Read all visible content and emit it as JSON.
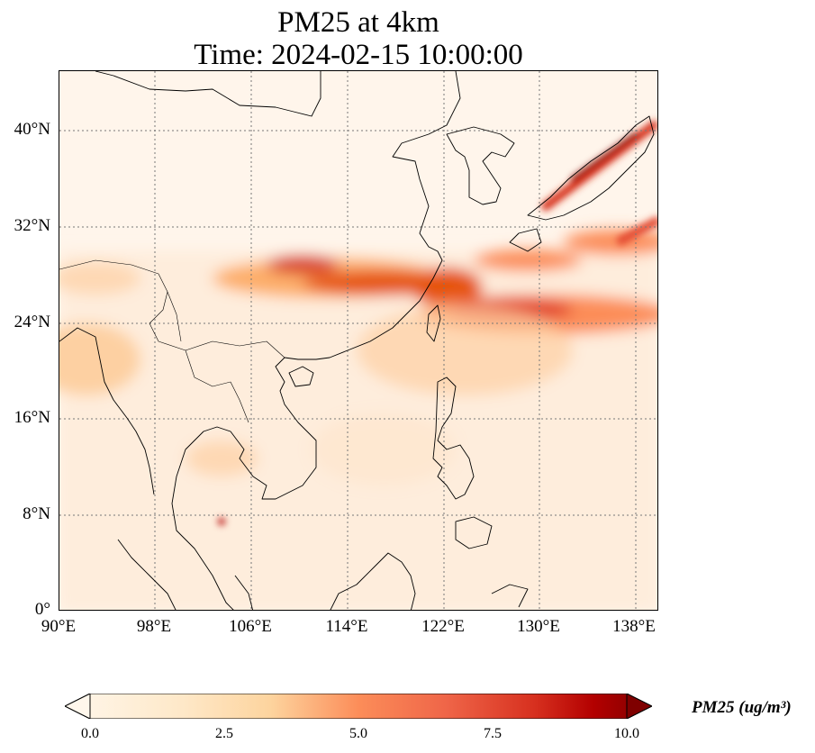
{
  "title": {
    "line1": "PM25 at 4km",
    "line2": "Time: 2024-02-15 10:00:00"
  },
  "map": {
    "projection": "PlateCarree",
    "extent": {
      "lon_min": 90,
      "lon_max": 139,
      "lat_min": 0,
      "lat_max": 45
    },
    "lat_ticks": [
      {
        "value": 40,
        "label": "40°N"
      },
      {
        "value": 32,
        "label": "32°N"
      },
      {
        "value": 24,
        "label": "24°N"
      },
      {
        "value": 16,
        "label": "16°N"
      },
      {
        "value": 8,
        "label": "8°N"
      },
      {
        "value": 0,
        "label": "0°"
      }
    ],
    "lon_ticks": [
      {
        "value": 90,
        "label": "90°E"
      },
      {
        "value": 98,
        "label": "98°E"
      },
      {
        "value": 106,
        "label": "106°E"
      },
      {
        "value": 114,
        "label": "114°E"
      },
      {
        "value": 122,
        "label": "122°E"
      },
      {
        "value": 130,
        "label": "130°E"
      },
      {
        "value": 138,
        "label": "138°E"
      }
    ],
    "gridlines": "dotted",
    "coastlines": true,
    "borders": true,
    "field": "PM25",
    "colormap": "OrRd",
    "colors": {
      "low": "#fff5eb",
      "mid": "#fdae6b",
      "high": "#e6550d",
      "max": "#7f0000"
    }
  },
  "colorbar": {
    "label": "PM25 (ug/m³)",
    "range": [
      0,
      10
    ],
    "ticks": [
      "0.0",
      "2.5",
      "5.0",
      "7.5",
      "10.0"
    ],
    "extend": "both",
    "orientation": "horizontal"
  }
}
